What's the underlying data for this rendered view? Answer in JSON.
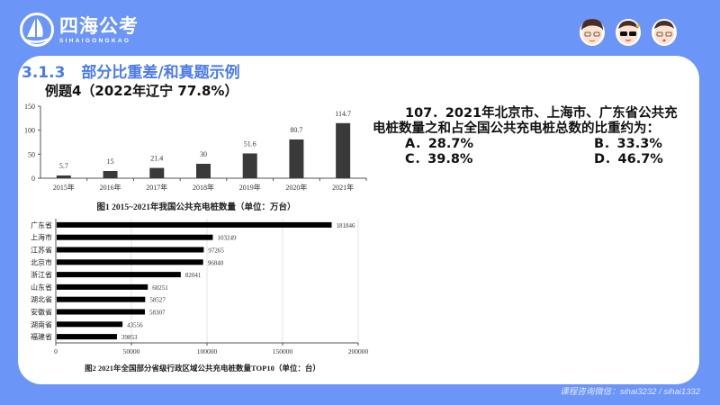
{
  "brand": {
    "name_cn": "四海公考",
    "name_en": "SIHAIGONGKAO"
  },
  "avatars": [
    {
      "name": "avatar-glasses",
      "style": "glasses"
    },
    {
      "name": "avatar-sunglasses",
      "style": "sunglasses"
    },
    {
      "name": "avatar-angry-glasses",
      "style": "angry"
    }
  ],
  "section": {
    "number": "3.1.3",
    "title": "部分比重差/和真题示例"
  },
  "example": {
    "title": "例题4（2022年辽宁  77.8%）"
  },
  "chart_data": [
    {
      "type": "bar",
      "title": "图1   2015~2021年我国公共充电桩数量（单位：万台）",
      "categories": [
        "2015年",
        "2016年",
        "2017年",
        "2018年",
        "2019年",
        "2020年",
        "2021年"
      ],
      "values": [
        5.7,
        15,
        21.4,
        30,
        51.6,
        80.7,
        114.7
      ],
      "value_labels": [
        "5.7",
        "15",
        "21.4",
        "30",
        "51.6",
        "80.7",
        "114.7"
      ],
      "yticks": [
        0,
        50,
        100,
        150
      ],
      "ylim": [
        0,
        150
      ],
      "xlabel": "",
      "ylabel": "",
      "grid": false,
      "bar_color": "#3a3a3a"
    },
    {
      "type": "bar",
      "orientation": "horizontal",
      "title": "图2   2021年全国部分省级行政区域公共充电桩数量TOP10（单位：台）",
      "categories": [
        "广东省",
        "上海市",
        "江苏省",
        "北京市",
        "浙江省",
        "山东省",
        "湖北省",
        "安徽省",
        "湖南省",
        "福建省"
      ],
      "values": [
        181846,
        103249,
        97265,
        96840,
        82041,
        60251,
        58527,
        58307,
        43556,
        39853
      ],
      "xticks": [
        0,
        50000,
        100000,
        150000,
        200000
      ],
      "xlim": [
        0,
        200000
      ],
      "grid": true,
      "bar_color": "#000000"
    }
  ],
  "question": {
    "line1": "107．2021年北京市、上海市、广东省公共充",
    "line2": "电桩数量之和占全国公共充电桩总数的比重约为：",
    "options": [
      {
        "key": "A",
        "label": "A．28.7%"
      },
      {
        "key": "B",
        "label": "B．33.3%"
      },
      {
        "key": "C",
        "label": "C．39.8%"
      },
      {
        "key": "D",
        "label": "D．46.7%"
      }
    ]
  },
  "footer": {
    "contact": "课程咨询微信：sihai3232 / sihai1332"
  },
  "colors": {
    "background": "#6b95f7",
    "accent_title": "#4a7bea",
    "card": "#ffffff"
  }
}
